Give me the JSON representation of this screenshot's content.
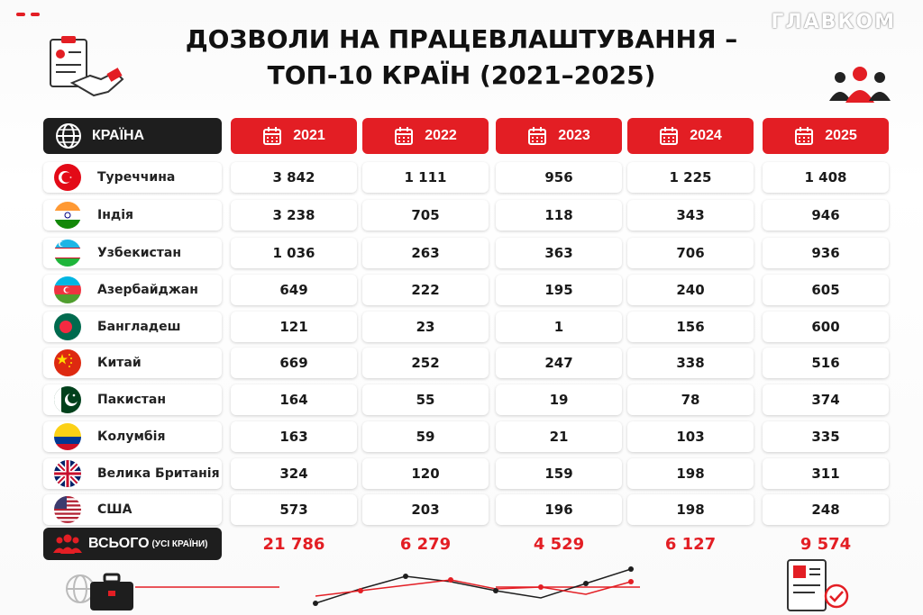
{
  "brand": "ГЛАВКОМ",
  "title": {
    "line1": "ДОЗВОЛИ НА ПРАЦЕВЛАШТУВАННЯ –",
    "line2": "ТОП-10 КРАЇН (2021–2025)"
  },
  "header": {
    "country_label": "КРАЇНА",
    "years": [
      "2021",
      "2022",
      "2023",
      "2024",
      "2025"
    ]
  },
  "rows": [
    {
      "country": "Туреччина",
      "flag": "turkey-flag",
      "values": [
        "3 842",
        "1 111",
        "956",
        "1 225",
        "1 408"
      ]
    },
    {
      "country": "Індія",
      "flag": "india-flag",
      "values": [
        "3 238",
        "705",
        "118",
        "343",
        "946"
      ]
    },
    {
      "country": "Узбекистан",
      "flag": "uzbekistan-flag",
      "values": [
        "1 036",
        "263",
        "363",
        "706",
        "936"
      ]
    },
    {
      "country": "Азербайджан",
      "flag": "azerbaijan-flag",
      "values": [
        "649",
        "222",
        "195",
        "240",
        "605"
      ]
    },
    {
      "country": "Бангладеш",
      "flag": "bangladesh-flag",
      "values": [
        "121",
        "23",
        "1",
        "156",
        "600"
      ]
    },
    {
      "country": "Китай",
      "flag": "china-flag",
      "values": [
        "669",
        "252",
        "247",
        "338",
        "516"
      ]
    },
    {
      "country": "Пакистан",
      "flag": "pakistan-flag",
      "values": [
        "164",
        "55",
        "19",
        "78",
        "374"
      ]
    },
    {
      "country": "Колумбія",
      "flag": "colombia-flag",
      "values": [
        "163",
        "59",
        "21",
        "103",
        "335"
      ]
    },
    {
      "country": "Велика Британія",
      "flag": "uk-flag",
      "values": [
        "324",
        "120",
        "159",
        "198",
        "311"
      ]
    },
    {
      "country": "США",
      "flag": "usa-flag",
      "values": [
        "573",
        "203",
        "196",
        "198",
        "248"
      ]
    }
  ],
  "total": {
    "label": "ВСЬОГО",
    "sublabel": "(УСІ КРАЇНИ)",
    "values": [
      "21 786",
      "6 279",
      "4 529",
      "6 127",
      "9 574"
    ]
  },
  "colors": {
    "accent": "#e31e24",
    "dark": "#1e1e1e"
  }
}
